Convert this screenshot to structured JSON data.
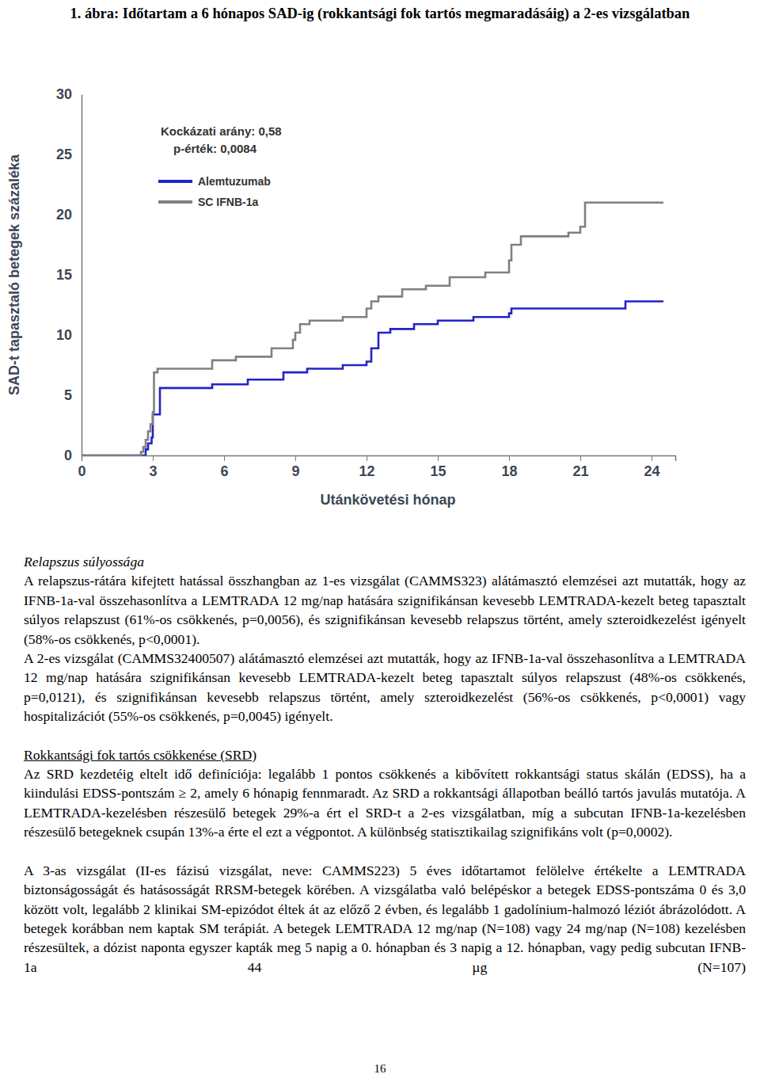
{
  "chart_data": {
    "type": "line",
    "title": "1. ábra: Időtartam a 6 hónapos SAD-ig (rokkantsági fok tartós megmaradásáig) a 2-es vizsgálatban",
    "xlabel": "Utánkövetési hónap",
    "ylabel": "SAD-t tapasztaló betegek százaléka",
    "annotations": [
      "Kockázati arány: 0,58",
      "p-érték: 0,0084"
    ],
    "xlim": [
      0,
      25
    ],
    "xticks": [
      0,
      3,
      6,
      9,
      12,
      15,
      18,
      21,
      24
    ],
    "ylim": [
      0,
      30
    ],
    "yticks": [
      0,
      5,
      10,
      15,
      20,
      25,
      30
    ],
    "grid": false,
    "line_style": "step",
    "series": [
      {
        "name": "Alemtuzumab",
        "color": "#2323c8",
        "x": [
          0,
          2.7,
          2.8,
          2.95,
          3.0,
          3.3,
          5.5,
          7.0,
          8.5,
          9.5,
          11.0,
          12.0,
          12.2,
          12.5,
          13.0,
          14.0,
          15.0,
          16.5,
          18.0,
          18.1,
          22.9,
          24.5
        ],
        "values": [
          0,
          0.5,
          1.0,
          1.5,
          3.4,
          5.6,
          5.9,
          6.3,
          6.9,
          7.2,
          7.5,
          7.8,
          8.9,
          10.2,
          10.5,
          10.9,
          11.2,
          11.5,
          11.8,
          12.2,
          12.8,
          12.8
        ]
      },
      {
        "name": "SC IFNB-1a",
        "color": "#808080",
        "x": [
          0,
          2.5,
          2.6,
          2.7,
          2.8,
          2.9,
          3.0,
          3.05,
          3.2,
          5.5,
          6.5,
          8.0,
          8.9,
          9.0,
          9.2,
          9.6,
          11.0,
          12.0,
          12.2,
          12.5,
          13.5,
          14.5,
          15.5,
          17.0,
          18.0,
          18.1,
          18.5,
          20.5,
          21.0,
          21.2,
          24.5
        ],
        "values": [
          0,
          0.3,
          0.7,
          1.3,
          2.0,
          2.6,
          3.6,
          6.9,
          7.2,
          7.9,
          8.2,
          8.9,
          9.6,
          10.2,
          10.9,
          11.2,
          11.5,
          12.2,
          12.8,
          13.2,
          13.8,
          14.1,
          14.8,
          15.2,
          16.2,
          17.5,
          18.2,
          18.5,
          19.0,
          21.0,
          21.0
        ]
      }
    ]
  },
  "sections": [
    {
      "heading": "Relapszus súlyossága",
      "paragraphs": [
        "A relapszus-rátára kifejtett hatással összhangban az 1-es vizsgálat (CAMMS323) alátámasztó elemzései azt mutatták, hogy az IFNB-1a-val összehasonlítva a LEMTRADA 12 mg/nap hatására szignifikánsan kevesebb LEMTRADA-kezelt beteg tapasztalt súlyos relapszust (61%-os csökkenés, p=0,0056), és szignifikánsan kevesebb relapszus történt, amely szteroidkezelést igényelt (58%-os csökkenés, p<0,0001).",
        "A 2-es vizsgálat (CAMMS32400507) alátámasztó elemzései azt mutatták, hogy az IFNB-1a-val összehasonlítva a LEMTRADA 12 mg/nap hatására szignifikánsan kevesebb LEMTRADA-kezelt beteg tapasztalt súlyos relapszust (48%-os csökkenés, p=0,0121), és szignifikánsan kevesebb relapszus történt, amely szteroidkezelést (56%-os csökkenés, p<0,0001) vagy hospitalizációt (55%-os csökkenés, p=0,0045) igényelt."
      ]
    },
    {
      "heading": "Rokkantsági fok tartós csökkenése (SRD)",
      "paragraphs": [
        "Az SRD kezdetéig eltelt idő definíciója: legalább 1 pontos csökkenés a kibővített rokkantsági status skálán (EDSS), ha a kiindulási EDSS-pontszám ≥ 2, amely 6 hónapig fennmaradt. Az SRD a rokkantsági állapotban beálló tartós javulás mutatója. A LEMTRADA-kezelésben részesülő betegek 29%-a ért el SRD-t a 2-es vizsgálatban, míg a subcutan IFNB-1a-kezelésben részesülő betegeknek csupán 13%-a érte el ezt a végpontot. A különbség statisztikailag szignifikáns volt (p=0,0002).",
        "A 3-as vizsgálat (II-es fázisú vizsgálat, neve: CAMMS223) 5 éves időtartamot felölelve értékelte a LEMTRADA biztonságosságát és hatásosságát RRSM-betegek körében. A vizsgálatba való belépéskor a betegek EDSS-pontszáma 0 és 3,0 között volt, legalább 2 klinikai SM-epizódot éltek át az előző 2 évben, és legalább 1 gadolínium-halmozó léziót ábrázolódott. A betegek korábban nem kaptak SM terápiát. A betegek LEMTRADA 12 mg/nap (N=108) vagy 24 mg/nap (N=108) kezelésben részesültek, a dózist naponta egyszer kapták meg 5 napig a 0. hónapban és 3 napig a 12. hónapban, vagy pedig subcutan IFNB-1a 44 µg (N=107)"
      ]
    }
  ],
  "page_number": "16"
}
